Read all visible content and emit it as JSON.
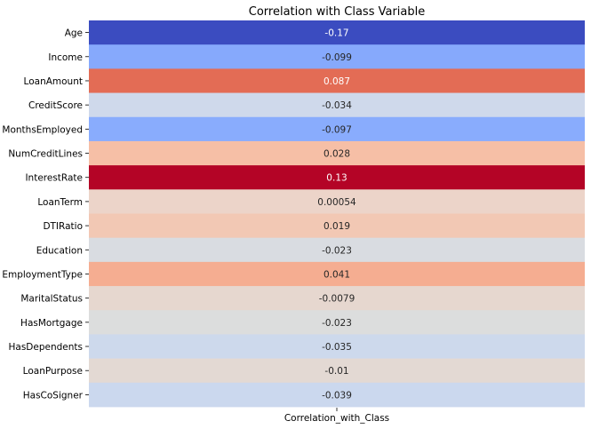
{
  "chart_data": {
    "type": "heatmap",
    "title": "Correlation with Class Variable",
    "column_label": "Correlation_with_Class",
    "colormap": "coolwarm",
    "rows": [
      {
        "label": "Age",
        "value": -0.17,
        "text": "-0.17",
        "color": "#3b4cc0"
      },
      {
        "label": "Income",
        "value": -0.099,
        "text": "-0.099",
        "color": "#86a9fc"
      },
      {
        "label": "LoanAmount",
        "value": 0.087,
        "text": "0.087",
        "color": "#e36c55"
      },
      {
        "label": "CreditScore",
        "value": -0.034,
        "text": "-0.034",
        "color": "#cfd9eb"
      },
      {
        "label": "MonthsEmployed",
        "value": -0.097,
        "text": "-0.097",
        "color": "#89acfd"
      },
      {
        "label": "NumCreditLines",
        "value": 0.028,
        "text": "0.028",
        "color": "#f6bfa6"
      },
      {
        "label": "InterestRate",
        "value": 0.13,
        "text": "0.13",
        "color": "#b40426"
      },
      {
        "label": "LoanTerm",
        "value": 0.00054,
        "text": "0.00054",
        "color": "#ecd4c9"
      },
      {
        "label": "DTIRatio",
        "value": 0.019,
        "text": "0.019",
        "color": "#f2c8b4"
      },
      {
        "label": "Education",
        "value": -0.023,
        "text": "-0.023",
        "color": "#d9dce1"
      },
      {
        "label": "EmploymentType",
        "value": 0.041,
        "text": "0.041",
        "color": "#f5ad91"
      },
      {
        "label": "MaritalStatus",
        "value": -0.0079,
        "text": "-0.0079",
        "color": "#e6d7cf"
      },
      {
        "label": "HasMortgage",
        "value": -0.023,
        "text": "-0.023",
        "color": "#dcdddd"
      },
      {
        "label": "HasDependents",
        "value": -0.035,
        "text": "-0.035",
        "color": "#cdd9ec"
      },
      {
        "label": "LoanPurpose",
        "value": -0.01,
        "text": "-0.01",
        "color": "#e3d9d3"
      },
      {
        "label": "HasCoSigner",
        "value": -0.039,
        "text": "-0.039",
        "color": "#cbd8ee"
      }
    ]
  }
}
